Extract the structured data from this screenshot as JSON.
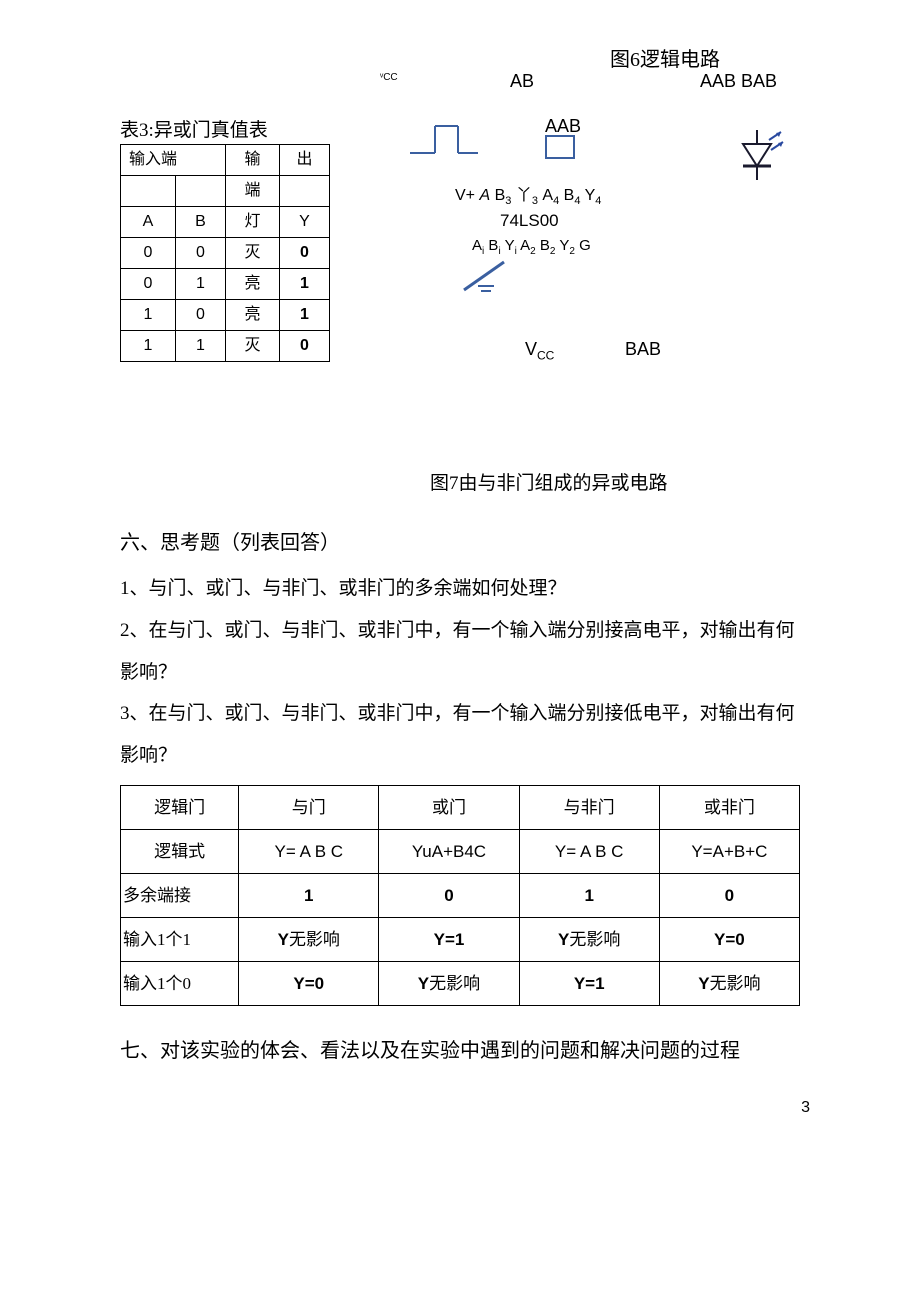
{
  "fig6_title": "图6逻辑电路",
  "labels": {
    "vcc_small": "ᵛCC",
    "ab": "AB",
    "aab_bab": "AAB BAB",
    "aab2": "AAB",
    "chip_line1_html": "V+ <span class='it'>A</span> B<span class='sub'>3</span> 丫<span class='sub'>3</span> A<span class='sub'>4</span> B<span class='sub'>4</span> Y<span class='sub'>4</span>",
    "chip_name": "74LS00",
    "chip_line2_html": "A<span class='sub'>i</span> B<span class='sub'>i</span> Y<span class='sub'>i</span> A<span class='sub'>2</span> B<span class='sub'>2</span> Y<span class='sub'>2</span> G",
    "vcc_big_html": "V<span class='sub'>CC</span>",
    "bab2": "BAB"
  },
  "table3": {
    "title": "表3:异或门真值表",
    "input_hdr": "输入端",
    "output_hdr1": "输",
    "output_hdr2": "出",
    "output_hdr3": "端",
    "col_a": "A",
    "col_b": "B",
    "col_lamp": "灯",
    "col_y": "Y",
    "rows": [
      {
        "a": "0",
        "b": "0",
        "lamp": "灭",
        "y": "0"
      },
      {
        "a": "0",
        "b": "1",
        "lamp": "亮",
        "y": "1"
      },
      {
        "a": "1",
        "b": "0",
        "lamp": "亮",
        "y": "1"
      },
      {
        "a": "1",
        "b": "1",
        "lamp": "灭",
        "y": "0"
      }
    ]
  },
  "fig7_title": "图7由与非门组成的异或电路",
  "section6": "六、思考题（列表回答）",
  "q1": "1、与门、或门、与非门、或非门的多余端如何处理？",
  "q2": "2、在与门、或门、与非门、或非门中，有一个输入端分别接高电平，对输出有何影响？",
  "q3": "3、在与门、或门、与非门、或非门中，有一个输入端分别接低电平，对输出有何影响？",
  "table4": {
    "headers": [
      "逻辑门",
      "与门",
      "或门",
      "与非门",
      "或非门"
    ],
    "rows": [
      {
        "label": "逻辑式",
        "cells": [
          "Y= A B C",
          "YuA+B4C",
          "Y= A B C",
          "Y=A+B+C"
        ],
        "cell_class": "ar"
      },
      {
        "label": "多余端接",
        "cells": [
          "1",
          "0",
          "1",
          "0"
        ],
        "cell_class": "ar bold",
        "label_class": "rowhdr-left"
      },
      {
        "label": "输入1个1",
        "cells_html": [
          "<span class='b'>Y</span>无影响",
          "<span class='b'>Y=1</span>",
          "<span class='b'>Y</span>无影响",
          "<span class='b'>Y=0</span>"
        ],
        "label_class": "rowhdr-left"
      },
      {
        "label": "输入1个0",
        "cells_html": [
          "<span class='b'>Y=0</span>",
          "<span class='b'>Y</span>无影响",
          "<span class='b'>Y=1</span>",
          "<span class='b'>Y</span>无影响"
        ],
        "label_class": "rowhdr-left"
      }
    ]
  },
  "section7": "七、对该实验的体会、看法以及在实验中遇到的问题和解决问题的过程",
  "pagenum": "3",
  "colors": {
    "symbol_blue": "#3a5fa0",
    "dark": "#1a1a2e",
    "arrow": "#2a4aa0"
  }
}
